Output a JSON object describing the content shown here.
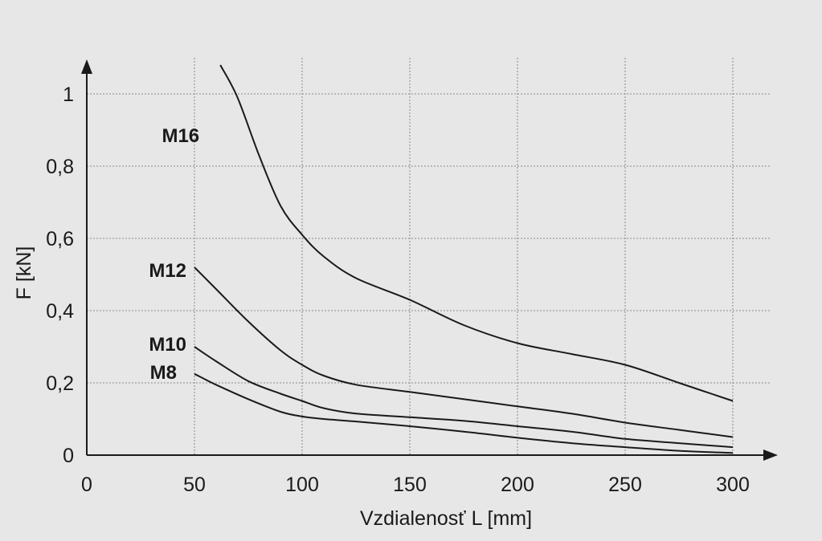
{
  "chart_data": {
    "type": "line",
    "xlabel": "Vzdialenosť L [mm]",
    "ylabel": "F [kN]",
    "xlim": [
      0,
      300
    ],
    "ylim": [
      0,
      1
    ],
    "x_ticks": [
      0,
      50,
      100,
      150,
      200,
      250,
      300
    ],
    "x_tick_labels": [
      "0",
      "50",
      "100",
      "150",
      "200",
      "250",
      "300"
    ],
    "y_ticks": [
      0,
      0.2,
      0.4,
      0.6,
      0.8,
      1
    ],
    "y_tick_labels": [
      "0",
      "0,2",
      "0,4",
      "0,6",
      "0,8",
      "1"
    ],
    "grid": true,
    "series": [
      {
        "name": "M16",
        "points": [
          [
            62,
            1.08
          ],
          [
            70,
            0.99
          ],
          [
            80,
            0.83
          ],
          [
            90,
            0.69
          ],
          [
            100,
            0.61
          ],
          [
            110,
            0.55
          ],
          [
            125,
            0.49
          ],
          [
            150,
            0.43
          ],
          [
            175,
            0.36
          ],
          [
            200,
            0.31
          ],
          [
            225,
            0.28
          ],
          [
            250,
            0.25
          ],
          [
            275,
            0.2
          ],
          [
            300,
            0.15
          ]
        ]
      },
      {
        "name": "M12",
        "points": [
          [
            50,
            0.52
          ],
          [
            60,
            0.46
          ],
          [
            75,
            0.37
          ],
          [
            90,
            0.29
          ],
          [
            100,
            0.25
          ],
          [
            110,
            0.22
          ],
          [
            125,
            0.195
          ],
          [
            150,
            0.175
          ],
          [
            175,
            0.155
          ],
          [
            200,
            0.135
          ],
          [
            225,
            0.115
          ],
          [
            250,
            0.09
          ],
          [
            275,
            0.07
          ],
          [
            300,
            0.05
          ]
        ]
      },
      {
        "name": "M10",
        "points": [
          [
            50,
            0.3
          ],
          [
            60,
            0.26
          ],
          [
            75,
            0.205
          ],
          [
            90,
            0.17
          ],
          [
            100,
            0.15
          ],
          [
            110,
            0.13
          ],
          [
            125,
            0.115
          ],
          [
            150,
            0.105
          ],
          [
            175,
            0.095
          ],
          [
            200,
            0.08
          ],
          [
            225,
            0.065
          ],
          [
            250,
            0.045
          ],
          [
            275,
            0.033
          ],
          [
            300,
            0.022
          ]
        ]
      },
      {
        "name": "M8",
        "points": [
          [
            50,
            0.225
          ],
          [
            60,
            0.195
          ],
          [
            75,
            0.155
          ],
          [
            90,
            0.12
          ],
          [
            100,
            0.107
          ],
          [
            110,
            0.1
          ],
          [
            125,
            0.093
          ],
          [
            150,
            0.08
          ],
          [
            175,
            0.065
          ],
          [
            200,
            0.048
          ],
          [
            225,
            0.033
          ],
          [
            250,
            0.022
          ],
          [
            275,
            0.012
          ],
          [
            300,
            0.006
          ]
        ]
      }
    ]
  }
}
